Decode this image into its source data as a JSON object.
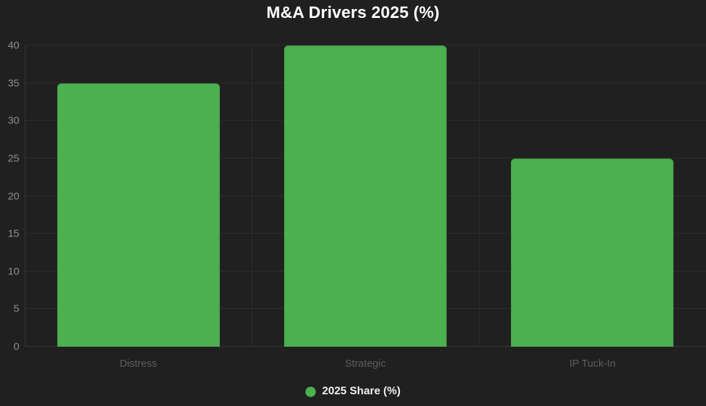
{
  "chart_data": {
    "type": "bar",
    "title": "M&A Drivers 2025 (%)",
    "categories": [
      "Distress",
      "Strategic",
      "IP Tuck-In"
    ],
    "series": [
      {
        "name": "2025 Share (%)",
        "values": [
          35,
          40,
          25
        ],
        "color": "#4caf50"
      }
    ],
    "xlabel": "",
    "ylabel": "",
    "ylim": [
      0,
      40
    ],
    "ytick_step": 5,
    "yticks": [
      0,
      5,
      10,
      15,
      20,
      25,
      30,
      35,
      40
    ],
    "grid": true,
    "legend_position": "bottom",
    "bar_width_fraction": 0.717,
    "colors": {
      "bar": "#4caf50",
      "background": "#202020",
      "grid": "#2d2d2d",
      "axis": "#383838",
      "title_text": "#ffffff",
      "ytick_text": "#8e8e8e",
      "xtick_text": "#5f5f5f",
      "legend_text": "#efefef"
    }
  }
}
